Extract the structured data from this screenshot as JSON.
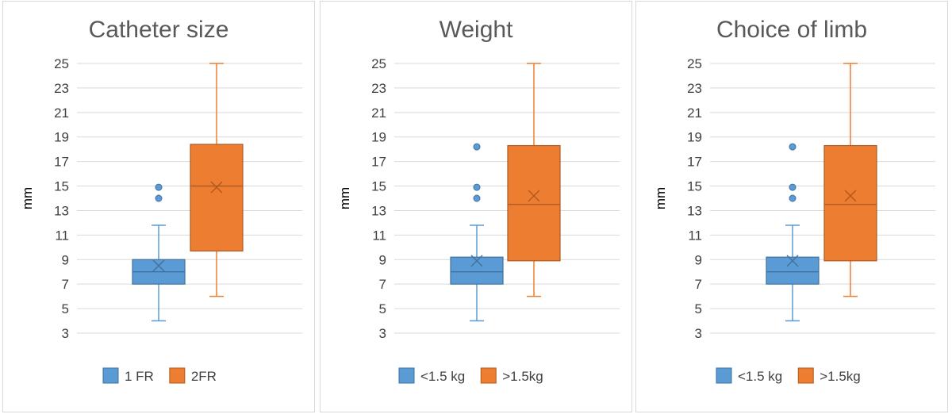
{
  "chart_data": [
    {
      "type": "box",
      "title": "Catheter size",
      "ylabel": "mm",
      "xlabel": "",
      "ylim": [
        3,
        25
      ],
      "yticks": [
        3,
        5,
        7,
        9,
        11,
        13,
        15,
        17,
        19,
        21,
        23,
        25
      ],
      "grid": true,
      "legend_position": "bottom",
      "series": [
        {
          "name": "1 FR",
          "color": "#5B9BD5",
          "edge": "#41719C",
          "min": 4,
          "q1": 7,
          "median": 8,
          "q3": 9,
          "max": 11.8,
          "mean": 8.5,
          "outliers": [
            14,
            14.9
          ]
        },
        {
          "name": "2FR",
          "color": "#ED7D31",
          "edge": "#AE5A21",
          "min": 6,
          "q1": 9.7,
          "median": 15,
          "q3": 18.4,
          "max": 25,
          "mean": 14.9,
          "outliers": []
        }
      ]
    },
    {
      "type": "box",
      "title": "Weight",
      "ylabel": "mm",
      "xlabel": "",
      "ylim": [
        3,
        25
      ],
      "yticks": [
        3,
        5,
        7,
        9,
        11,
        13,
        15,
        17,
        19,
        21,
        23,
        25
      ],
      "grid": true,
      "legend_position": "bottom",
      "series": [
        {
          "name": "<1.5 kg",
          "color": "#5B9BD5",
          "edge": "#41719C",
          "min": 4,
          "q1": 7,
          "median": 8,
          "q3": 9.2,
          "max": 11.8,
          "mean": 8.9,
          "outliers": [
            14,
            14.9,
            18.2
          ]
        },
        {
          "name": ">1.5kg",
          "color": "#ED7D31",
          "edge": "#AE5A21",
          "min": 6,
          "q1": 8.9,
          "median": 13.5,
          "q3": 18.3,
          "max": 25,
          "mean": 14.2,
          "outliers": []
        }
      ]
    },
    {
      "type": "box",
      "title": "Choice of limb",
      "ylabel": "mm",
      "xlabel": "",
      "ylim": [
        3,
        25
      ],
      "yticks": [
        3,
        5,
        7,
        9,
        11,
        13,
        15,
        17,
        19,
        21,
        23,
        25
      ],
      "grid": true,
      "legend_position": "bottom",
      "series": [
        {
          "name": "<1.5 kg",
          "color": "#5B9BD5",
          "edge": "#41719C",
          "min": 4,
          "q1": 7,
          "median": 8,
          "q3": 9.2,
          "max": 11.8,
          "mean": 8.9,
          "outliers": [
            14,
            14.9,
            18.2
          ]
        },
        {
          "name": ">1.5kg",
          "color": "#ED7D31",
          "edge": "#AE5A21",
          "min": 6,
          "q1": 8.9,
          "median": 13.5,
          "q3": 18.3,
          "max": 25,
          "mean": 14.2,
          "outliers": []
        }
      ]
    }
  ]
}
